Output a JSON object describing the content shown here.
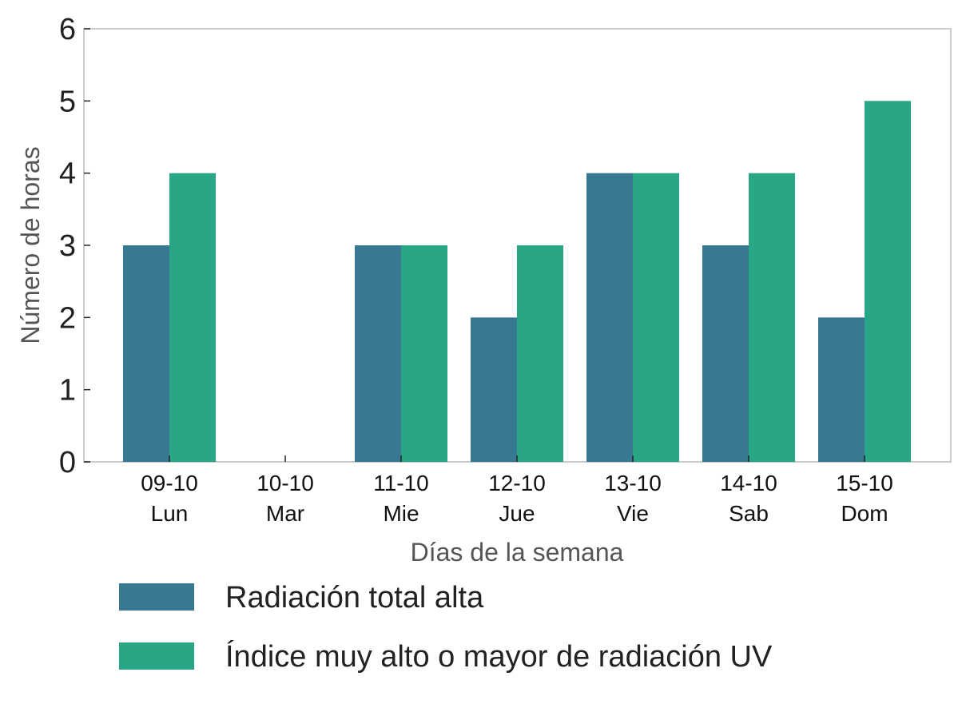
{
  "chart_data": {
    "type": "bar",
    "xlabel": "Días de la semana",
    "ylabel": "Número de horas",
    "ylim": [
      0,
      6
    ],
    "yticks": [
      0,
      1,
      2,
      3,
      4,
      5,
      6
    ],
    "grid": false,
    "legend_position": "bottom",
    "categories": [
      {
        "date": "09-10",
        "day": "Lun"
      },
      {
        "date": "10-10",
        "day": "Mar"
      },
      {
        "date": "11-10",
        "day": "Mie"
      },
      {
        "date": "12-10",
        "day": "Jue"
      },
      {
        "date": "13-10",
        "day": "Vie"
      },
      {
        "date": "14-10",
        "day": "Sab"
      },
      {
        "date": "15-10",
        "day": "Dom"
      }
    ],
    "series": [
      {
        "name": "Radiación total alta",
        "color": "#377993",
        "values": [
          3,
          0,
          3,
          2,
          4,
          3,
          2
        ]
      },
      {
        "name": "Índice muy alto o mayor de radiación UV",
        "color": "#28A686",
        "values": [
          4,
          0,
          3,
          3,
          4,
          4,
          5
        ]
      }
    ]
  }
}
